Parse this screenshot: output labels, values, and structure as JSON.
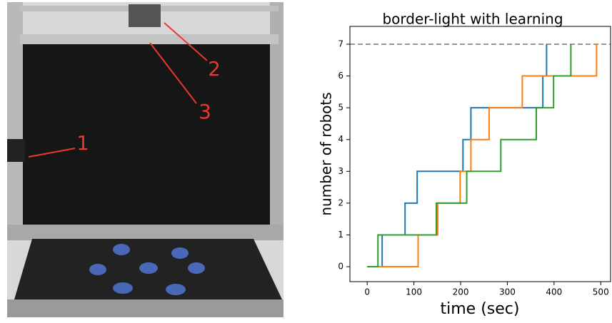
{
  "photo_labels": [
    "1",
    "2",
    "3"
  ],
  "chart_data": {
    "type": "step",
    "title": "border-light with learning",
    "xlabel": "time (sec)",
    "ylabel": "number of robots",
    "xlim": [
      -37,
      521
    ],
    "ylim": [
      -0.47,
      7.56
    ],
    "xticks": [
      0,
      100,
      200,
      300,
      400,
      500
    ],
    "yticks": [
      0,
      1,
      2,
      3,
      4,
      5,
      6,
      7
    ],
    "reference_line": 7,
    "reference_color": "#888888",
    "series": [
      {
        "color": "#1f77b4",
        "x": [
          0,
          32,
          81,
          107,
          205,
          222,
          376,
          384
        ],
        "values": [
          0,
          1,
          2,
          3,
          4,
          5,
          6,
          7
        ]
      },
      {
        "color": "#ff7f0e",
        "x": [
          0,
          109,
          151,
          199,
          222,
          261,
          332,
          491
        ],
        "values": [
          0,
          1,
          2,
          3,
          4,
          5,
          6,
          7
        ]
      },
      {
        "color": "#2ca02c",
        "x": [
          0,
          23,
          148,
          213,
          286,
          362,
          399,
          436
        ],
        "values": [
          0,
          1,
          2,
          3,
          4,
          5,
          6,
          7
        ]
      }
    ]
  }
}
